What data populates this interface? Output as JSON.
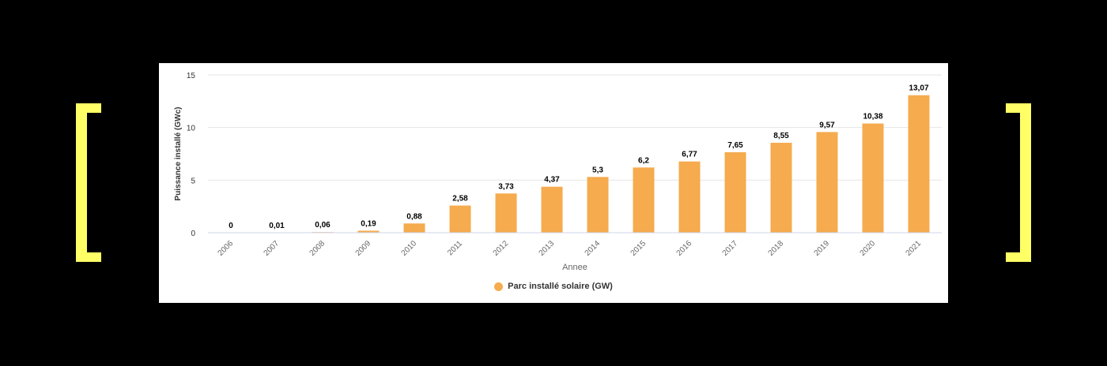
{
  "colors": {
    "page_background": "#000000",
    "panel_background": "#ffffff",
    "bracket": "#ffff66",
    "bar": "#f5ab4e",
    "gridline": "#e6e6e6",
    "axis_line": "#ccd6eb",
    "label_text": "#333333",
    "tick_text": "#666666"
  },
  "chart_data": {
    "type": "bar",
    "categories": [
      "2006",
      "2007",
      "2008",
      "2009",
      "2010",
      "2011",
      "2012",
      "2013",
      "2014",
      "2015",
      "2016",
      "2017",
      "2018",
      "2019",
      "2020",
      "2021"
    ],
    "series": [
      {
        "name": "Parc installé solaire (GW)",
        "values": [
          0,
          0.01,
          0.06,
          0.19,
          0.88,
          2.58,
          3.73,
          4.37,
          5.3,
          6.2,
          6.77,
          7.65,
          8.55,
          9.57,
          10.38,
          13.07
        ],
        "labels": [
          "0",
          "0,01",
          "0,06",
          "0,19",
          "0,88",
          "2,58",
          "3,73",
          "4,37",
          "5,3",
          "6,2",
          "6,77",
          "7,65",
          "8,55",
          "9,57",
          "10,38",
          "13,07"
        ]
      }
    ],
    "xlabel": "Annee",
    "ylabel": "Puissance installé (GWc)",
    "ylim": [
      0,
      15
    ],
    "yticks": [
      0,
      5,
      10,
      15
    ],
    "grid": true,
    "legend_position": "bottom-center"
  }
}
